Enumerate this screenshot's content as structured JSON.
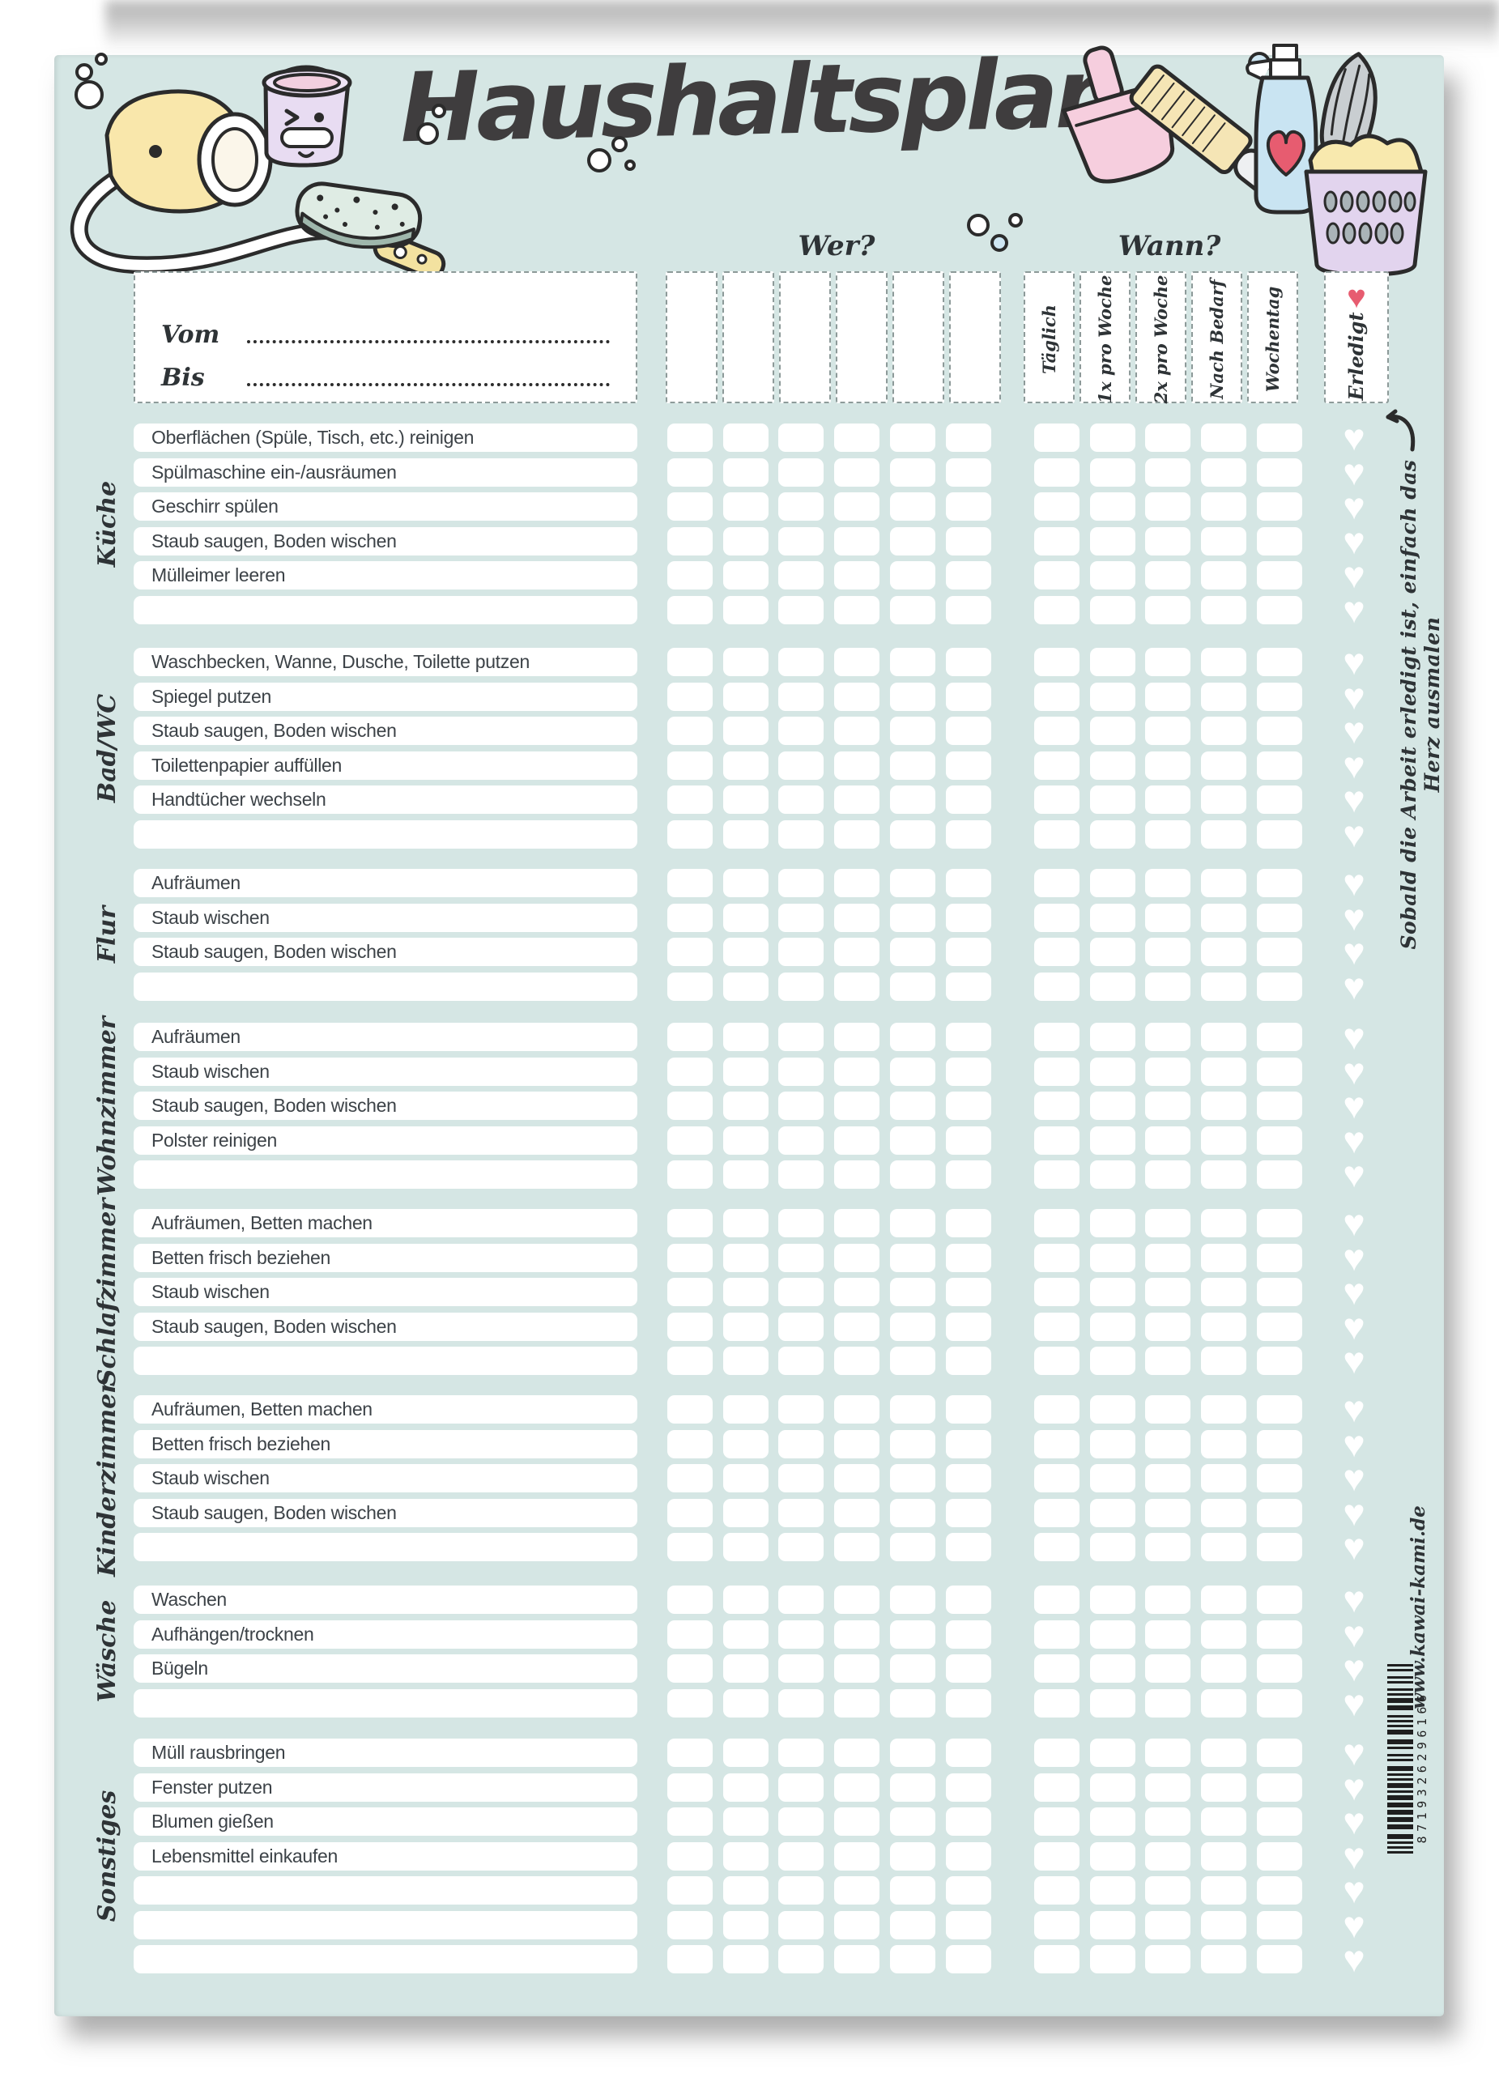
{
  "page": {
    "title": "Haushaltsplan",
    "who_label": "Wer?",
    "when_label": "Wann?",
    "from_label": "Vom",
    "to_label": "Bis",
    "done_label": "Erledigt",
    "side_note": "Sobald die Arbeit erledigt ist, einfach das Herz ausmalen",
    "website": "www.kawai-kami.de",
    "barcode_digits": "8719326296166"
  },
  "who_column_count": 6,
  "frequency_columns": [
    "Täglich",
    "1x pro Woche",
    "2x pro Woche",
    "Nach Bedarf",
    "Wochentag"
  ],
  "sections": [
    {
      "name": "Küche",
      "tasks": [
        "Oberflächen (Spüle, Tisch, etc.) reinigen",
        "Spülmaschine ein-/ausräumen",
        "Geschirr spülen",
        "Staub saugen, Boden wischen",
        "Mülleimer leeren",
        ""
      ]
    },
    {
      "name": "Bad/WC",
      "tasks": [
        "Waschbecken, Wanne, Dusche, Toilette putzen",
        "Spiegel putzen",
        "Staub saugen, Boden wischen",
        "Toilettenpapier auffüllen",
        "Handtücher wechseln",
        ""
      ]
    },
    {
      "name": "Flur",
      "tasks": [
        "Aufräumen",
        "Staub wischen",
        "Staub saugen, Boden wischen",
        ""
      ]
    },
    {
      "name": "Wohnzimmer",
      "tasks": [
        "Aufräumen",
        "Staub wischen",
        "Staub saugen, Boden wischen",
        "Polster reinigen",
        ""
      ]
    },
    {
      "name": "Schlafzimmer",
      "tasks": [
        "Aufräumen, Betten machen",
        "Betten frisch beziehen",
        "Staub wischen",
        "Staub saugen, Boden wischen",
        ""
      ]
    },
    {
      "name": "Kinderzimmer",
      "tasks": [
        "Aufräumen, Betten machen",
        "Betten frisch beziehen",
        "Staub wischen",
        "Staub saugen, Boden wischen",
        ""
      ]
    },
    {
      "name": "Wäsche",
      "tasks": [
        "Waschen",
        "Aufhängen/trocknen",
        "Bügeln",
        ""
      ]
    },
    {
      "name": "Sonstiges",
      "tasks": [
        "Müll rausbringen",
        "Fenster putzen",
        "Blumen gießen",
        "Lebensmittel einkaufen",
        "",
        "",
        ""
      ]
    }
  ],
  "colors": {
    "paper": "#d5e6e4",
    "box_white": "#ffffff",
    "dash_border": "#8d9a99",
    "text_dark": "#2e3336",
    "task_text": "#3c4247",
    "accent_heart": "#e75c70",
    "heart_unfilled": "#ffffff"
  }
}
